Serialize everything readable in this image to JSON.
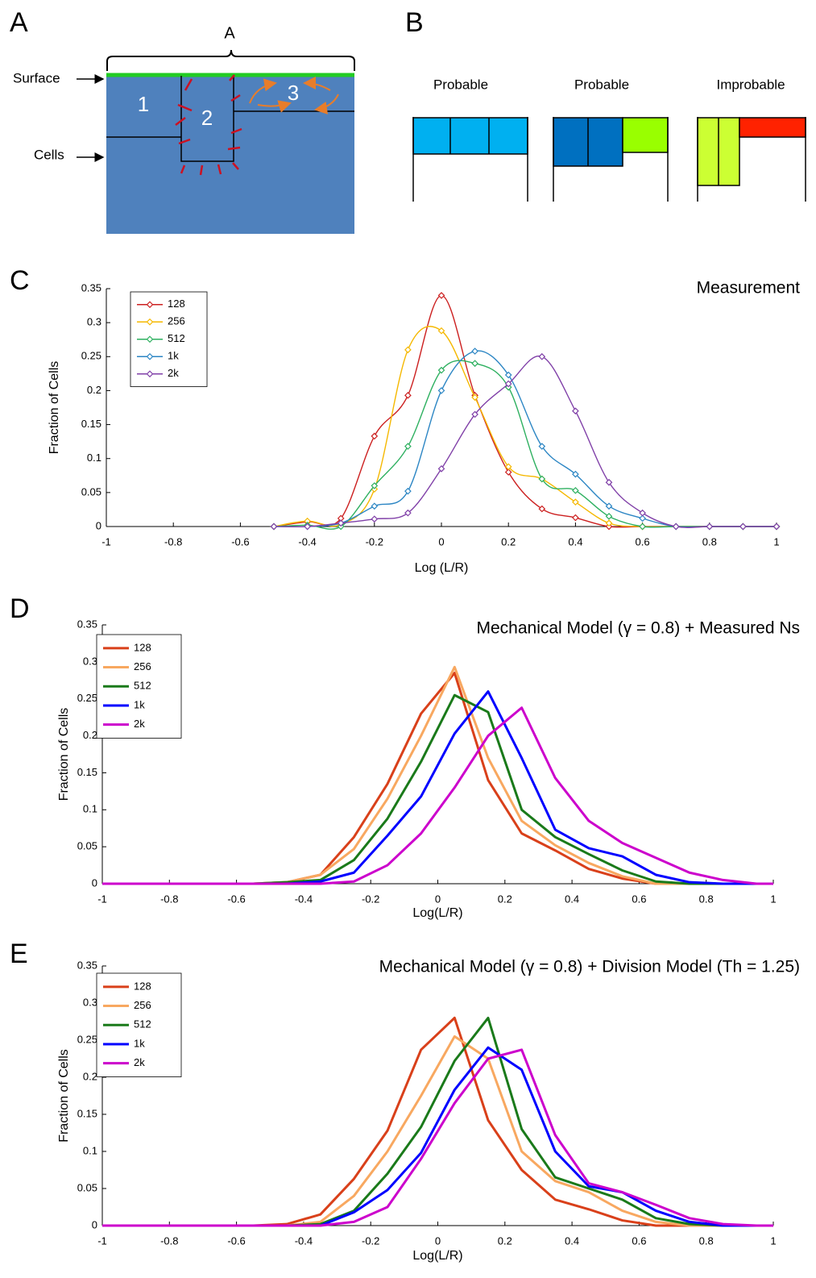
{
  "panel_a": {
    "label": "A",
    "brace_label": "A",
    "surface": "Surface",
    "cells": "Cells",
    "cell_labels": [
      "1",
      "2",
      "3"
    ]
  },
  "panel_b": {
    "label": "B",
    "captions": [
      "Probable",
      "Probable",
      "Improbable"
    ]
  },
  "chart_data": [
    {
      "type": "line",
      "panel_label": "C",
      "title": "Measurement",
      "x_label": "Log (L/R)",
      "y_label": "Fraction of Cells",
      "markers": true,
      "smooth": true,
      "x": [
        -0.5,
        -0.4,
        -0.3,
        -0.2,
        -0.1,
        0,
        0.1,
        0.2,
        0.3,
        0.4,
        0.5,
        0.6,
        0.7,
        0.8,
        0.9,
        1
      ],
      "series": [
        {
          "name": "128",
          "color": "#cc2020",
          "values": [
            0,
            0.007,
            0.012,
            0.133,
            0.193,
            0.34,
            0.193,
            0.08,
            0.026,
            0.013,
            0,
            0,
            0,
            0,
            0,
            0
          ]
        },
        {
          "name": "256",
          "color": "#f5b800",
          "values": [
            0,
            0.008,
            0.003,
            0.055,
            0.26,
            0.288,
            0.19,
            0.088,
            0.07,
            0.036,
            0.005,
            0,
            0,
            0,
            0,
            0
          ]
        },
        {
          "name": "512",
          "color": "#2eb060",
          "values": [
            0,
            0.002,
            0,
            0.06,
            0.118,
            0.23,
            0.24,
            0.205,
            0.07,
            0.053,
            0.015,
            0,
            0,
            0,
            0,
            0
          ]
        },
        {
          "name": "1k",
          "color": "#2c86c4",
          "values": [
            0,
            0,
            0.005,
            0.03,
            0.052,
            0.2,
            0.258,
            0.223,
            0.118,
            0.077,
            0.03,
            0.012,
            0,
            0,
            0,
            0
          ]
        },
        {
          "name": "2k",
          "color": "#8040a8",
          "values": [
            0,
            0,
            0.005,
            0.011,
            0.02,
            0.085,
            0.165,
            0.21,
            0.25,
            0.17,
            0.065,
            0.02,
            0,
            0,
            0,
            0
          ]
        }
      ],
      "xlim": [
        -1,
        1
      ],
      "ylim": [
        0,
        0.35
      ],
      "xticks": [
        -1,
        -0.8,
        -0.6,
        -0.4,
        -0.2,
        0,
        0.2,
        0.4,
        0.6,
        0.8,
        1
      ],
      "yticks": [
        0,
        0.05,
        0.1,
        0.15,
        0.2,
        0.25,
        0.3,
        0.35
      ]
    },
    {
      "type": "line",
      "panel_label": "D",
      "title": "Mechanical Model (γ = 0.8) + Measured Ns",
      "x_label": "Log(L/R)",
      "y_label": "Fraction of Cells",
      "markers": false,
      "smooth": false,
      "x": [
        -1,
        -0.95,
        -0.85,
        -0.75,
        -0.65,
        -0.55,
        -0.45,
        -0.35,
        -0.25,
        -0.15,
        -0.05,
        0.05,
        0.15,
        0.25,
        0.35,
        0.45,
        0.55,
        0.65,
        0.75,
        0.85,
        0.95,
        1
      ],
      "series": [
        {
          "name": "128",
          "color": "#d9401a",
          "values": [
            0,
            0,
            0,
            0,
            0,
            0,
            0.002,
            0.012,
            0.063,
            0.135,
            0.23,
            0.285,
            0.14,
            0.068,
            0.045,
            0.02,
            0.007,
            0,
            0,
            0,
            0,
            0
          ]
        },
        {
          "name": "256",
          "color": "#f8a860",
          "values": [
            0,
            0,
            0,
            0,
            0,
            0,
            0.002,
            0.012,
            0.047,
            0.115,
            0.2,
            0.293,
            0.17,
            0.085,
            0.052,
            0.028,
            0.01,
            0,
            0,
            0,
            0,
            0
          ]
        },
        {
          "name": "512",
          "color": "#1a7a1a",
          "values": [
            0,
            0,
            0,
            0,
            0,
            0,
            0.002,
            0.005,
            0.032,
            0.088,
            0.165,
            0.255,
            0.232,
            0.1,
            0.063,
            0.04,
            0.018,
            0.003,
            0,
            0,
            0,
            0
          ]
        },
        {
          "name": "1k",
          "color": "#0000ff",
          "values": [
            0,
            0,
            0,
            0,
            0,
            0,
            0,
            0.003,
            0.015,
            0.065,
            0.118,
            0.203,
            0.26,
            0.17,
            0.073,
            0.048,
            0.037,
            0.012,
            0.002,
            0,
            0,
            0
          ]
        },
        {
          "name": "2k",
          "color": "#cc00cc",
          "values": [
            0,
            0,
            0,
            0,
            0,
            0,
            0,
            0,
            0.003,
            0.025,
            0.068,
            0.13,
            0.2,
            0.238,
            0.143,
            0.085,
            0.055,
            0.035,
            0.015,
            0.005,
            0,
            0
          ]
        }
      ],
      "xlim": [
        -1,
        1
      ],
      "ylim": [
        0,
        0.35
      ],
      "xticks": [
        -1,
        -0.8,
        -0.6,
        -0.4,
        -0.2,
        0,
        0.2,
        0.4,
        0.6,
        0.8,
        1
      ],
      "yticks": [
        0,
        0.05,
        0.1,
        0.15,
        0.2,
        0.25,
        0.3,
        0.35
      ]
    },
    {
      "type": "line",
      "panel_label": "E",
      "title": "Mechanical Model (γ = 0.8) + Division Model (Th = 1.25)",
      "x_label": "Log(L/R)",
      "y_label": "Fraction of Cells",
      "markers": false,
      "smooth": false,
      "x": [
        -1,
        -0.95,
        -0.85,
        -0.75,
        -0.65,
        -0.55,
        -0.45,
        -0.35,
        -0.25,
        -0.15,
        -0.05,
        0.05,
        0.15,
        0.25,
        0.35,
        0.45,
        0.55,
        0.65,
        0.75,
        0.85,
        0.95,
        1
      ],
      "series": [
        {
          "name": "128",
          "color": "#d9401a",
          "values": [
            0,
            0,
            0,
            0,
            0,
            0,
            0.002,
            0.015,
            0.063,
            0.128,
            0.237,
            0.28,
            0.142,
            0.075,
            0.035,
            0.022,
            0.007,
            0,
            0,
            0,
            0,
            0
          ]
        },
        {
          "name": "256",
          "color": "#f8a860",
          "values": [
            0,
            0,
            0,
            0,
            0,
            0,
            0,
            0.005,
            0.04,
            0.1,
            0.175,
            0.255,
            0.225,
            0.1,
            0.06,
            0.045,
            0.02,
            0.005,
            0,
            0,
            0,
            0
          ]
        },
        {
          "name": "512",
          "color": "#1a7a1a",
          "values": [
            0,
            0,
            0,
            0,
            0,
            0,
            0,
            0.002,
            0.02,
            0.07,
            0.133,
            0.222,
            0.28,
            0.13,
            0.065,
            0.05,
            0.035,
            0.01,
            0.002,
            0,
            0,
            0
          ]
        },
        {
          "name": "1k",
          "color": "#0000ff",
          "values": [
            0,
            0,
            0,
            0,
            0,
            0,
            0,
            0,
            0.018,
            0.048,
            0.098,
            0.183,
            0.24,
            0.21,
            0.1,
            0.053,
            0.045,
            0.02,
            0.005,
            0,
            0,
            0
          ]
        },
        {
          "name": "2k",
          "color": "#cc00cc",
          "values": [
            0,
            0,
            0,
            0,
            0,
            0,
            0,
            0,
            0.005,
            0.025,
            0.09,
            0.165,
            0.225,
            0.237,
            0.122,
            0.057,
            0.045,
            0.028,
            0.01,
            0.002,
            0,
            0
          ]
        }
      ],
      "xlim": [
        -1,
        1
      ],
      "ylim": [
        0,
        0.35
      ],
      "xticks": [
        -1,
        -0.8,
        -0.6,
        -0.4,
        -0.2,
        0,
        0.2,
        0.4,
        0.6,
        0.8,
        1
      ],
      "yticks": [
        0,
        0.05,
        0.1,
        0.15,
        0.2,
        0.25,
        0.3,
        0.35
      ]
    }
  ]
}
